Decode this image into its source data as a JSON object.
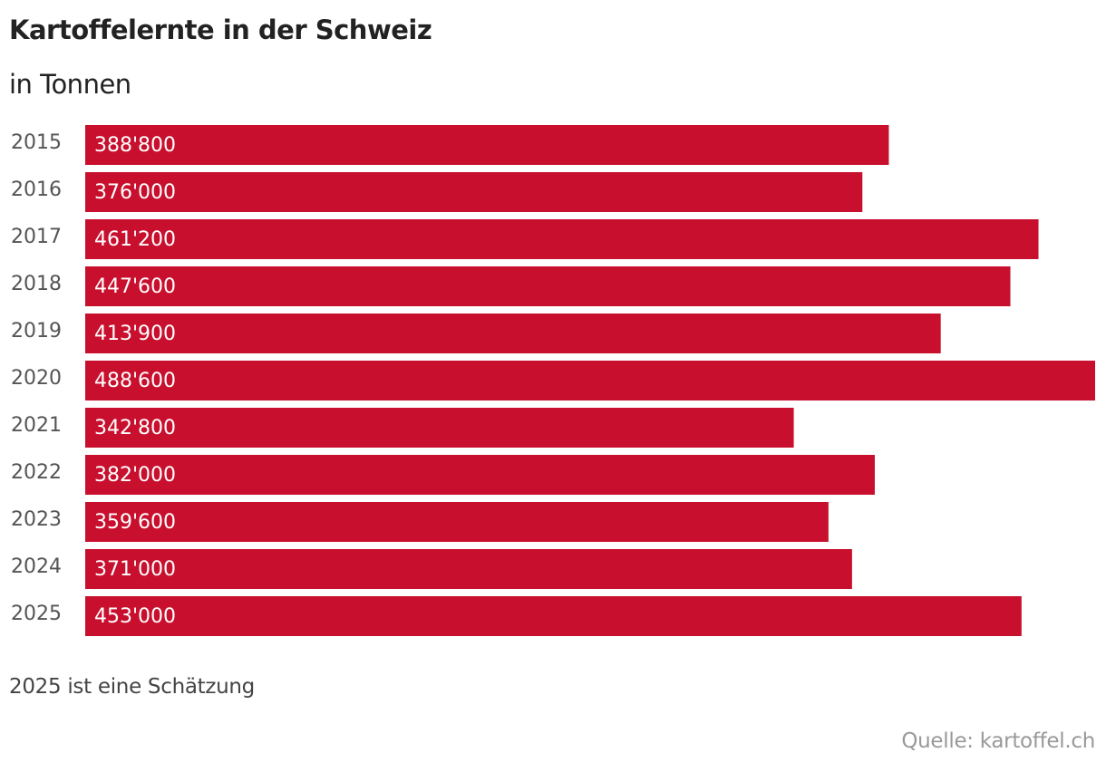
{
  "chart_data": {
    "type": "bar",
    "orientation": "horizontal",
    "title": "Kartoffelernte in der Schweiz",
    "subtitle": "in Tonnen",
    "categories": [
      "2015",
      "2016",
      "2017",
      "2018",
      "2019",
      "2020",
      "2021",
      "2022",
      "2023",
      "2024",
      "2025"
    ],
    "values": [
      388800,
      376000,
      461200,
      447600,
      413900,
      488600,
      342800,
      382000,
      359600,
      371000,
      453000
    ],
    "data_labels": [
      "388'800",
      "376'000",
      "461'200",
      "447'600",
      "413'900",
      "488'600",
      "342'800",
      "382'000",
      "359'600",
      "371'000",
      "453'000"
    ],
    "xlim": [
      0,
      488600
    ],
    "grid": false,
    "bar_color": "#c8102e",
    "label_color": "#ffffff",
    "note": "2025 ist eine Schätzung",
    "source": "Quelle: kartoffel.ch"
  }
}
